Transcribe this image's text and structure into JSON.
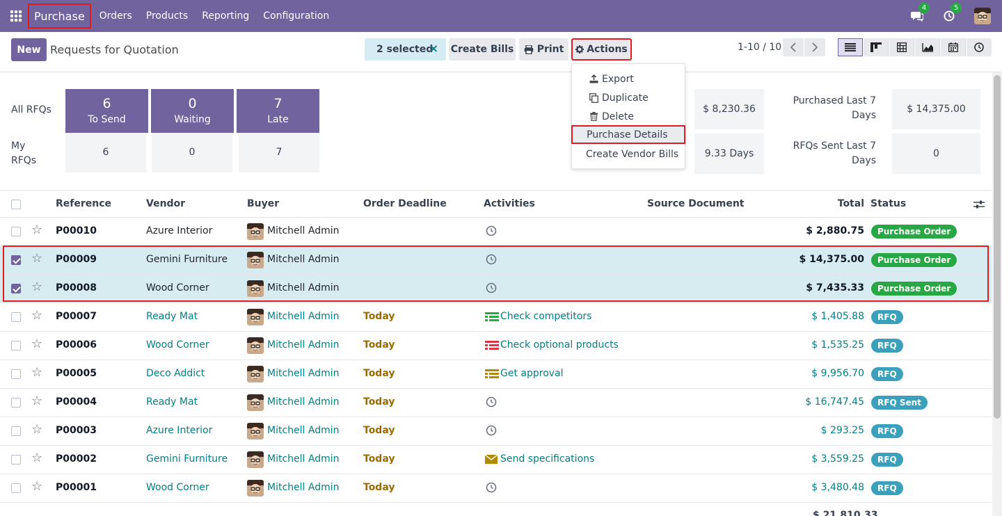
{
  "navbar": {
    "app_name": "Purchase",
    "menu": [
      "Orders",
      "Products",
      "Reporting",
      "Configuration"
    ],
    "messages_count": "4",
    "activities_count": "5"
  },
  "control_panel": {
    "new_label": "New",
    "title": "Requests for Quotation",
    "selected_label": "2 selected",
    "clear_icon": "×",
    "create_bills_label": "Create Bills",
    "print_label": "Print",
    "actions_label": "Actions",
    "pager_value": "1-10 / 10",
    "views": [
      "list-icon",
      "kanban-icon",
      "pivot-icon",
      "graph-icon",
      "calendar-icon",
      "activity-icon"
    ]
  },
  "dashboard": {
    "all_rfqs_label": "All RFQs",
    "my_rfqs_label": "My\nRFQs",
    "tiles": [
      {
        "num": "6",
        "label": "To Send",
        "mine": "6"
      },
      {
        "num": "0",
        "label": "Waiting",
        "mine": "0"
      },
      {
        "num": "7",
        "label": "Late",
        "mine": "7"
      }
    ],
    "stats": {
      "value_1": "$ 8,230.36",
      "value_2": "9.33 Days",
      "purchased_label": "Purchased Last 7 Days",
      "purchased_value": "$ 14,375.00",
      "rfqs_sent_label": "RFQs Sent Last 7 Days",
      "rfqs_sent_value": "0"
    }
  },
  "actions_menu": {
    "items": [
      {
        "label": "Export",
        "icon": "upload-icon"
      },
      {
        "label": "Duplicate",
        "icon": "copy-icon"
      },
      {
        "label": "Delete",
        "icon": "trash-icon"
      },
      {
        "label": "Purchase Details",
        "icon": ""
      },
      {
        "label": "Create Vendor Bills",
        "icon": ""
      }
    ]
  },
  "table": {
    "headers": {
      "reference": "Reference",
      "vendor": "Vendor",
      "buyer": "Buyer",
      "deadline": "Order Deadline",
      "activities": "Activities",
      "source": "Source Document",
      "total": "Total",
      "status": "Status"
    },
    "rows": [
      {
        "ref": "P00010",
        "vendor": "Azure Interior",
        "buyer": "Mitchell Admin",
        "deadline": "",
        "activity": "",
        "activity_icon": "clock-icon",
        "total": "$ 2,880.75",
        "status": "Purchase Order",
        "selected": false
      },
      {
        "ref": "P00009",
        "vendor": "Gemini Furniture",
        "buyer": "Mitchell Admin",
        "deadline": "",
        "activity": "",
        "activity_icon": "clock-icon",
        "total": "$ 14,375.00",
        "status": "Purchase Order",
        "selected": true
      },
      {
        "ref": "P00008",
        "vendor": "Wood Corner",
        "buyer": "Mitchell Admin",
        "deadline": "",
        "activity": "",
        "activity_icon": "clock-icon",
        "total": "$ 7,435.33",
        "status": "Purchase Order",
        "selected": true
      },
      {
        "ref": "P00007",
        "vendor": "Ready Mat",
        "buyer": "Mitchell Admin",
        "deadline": "Today",
        "activity": "Check competitors",
        "activity_icon": "todo-list-icon",
        "total": "$ 1,405.88",
        "status": "RFQ",
        "selected": false
      },
      {
        "ref": "P00006",
        "vendor": "Wood Corner",
        "buyer": "Mitchell Admin",
        "deadline": "Today",
        "activity": "Check optional products",
        "activity_icon": "todo-list-icon",
        "total": "$ 1,535.25",
        "status": "RFQ",
        "selected": false
      },
      {
        "ref": "P00005",
        "vendor": "Deco Addict",
        "buyer": "Mitchell Admin",
        "deadline": "Today",
        "activity": "Get approval",
        "activity_icon": "todo-list-icon",
        "total": "$ 9,956.70",
        "status": "RFQ",
        "selected": false
      },
      {
        "ref": "P00004",
        "vendor": "Ready Mat",
        "buyer": "Mitchell Admin",
        "deadline": "Today",
        "activity": "",
        "activity_icon": "clock-icon",
        "total": "$ 16,747.45",
        "status": "RFQ Sent",
        "selected": false
      },
      {
        "ref": "P00003",
        "vendor": "Azure Interior",
        "buyer": "Mitchell Admin",
        "deadline": "Today",
        "activity": "",
        "activity_icon": "clock-icon",
        "total": "$ 293.25",
        "status": "RFQ",
        "selected": false
      },
      {
        "ref": "P00002",
        "vendor": "Gemini Furniture",
        "buyer": "Mitchell Admin",
        "deadline": "Today",
        "activity": "Send specifications",
        "activity_icon": "envelope-icon",
        "total": "$ 3,559.25",
        "status": "RFQ",
        "selected": false
      },
      {
        "ref": "P00001",
        "vendor": "Wood Corner",
        "buyer": "Mitchell Admin",
        "deadline": "Today",
        "activity": "",
        "activity_icon": "clock-icon",
        "total": "$ 3,480.48",
        "status": "RFQ",
        "selected": false
      }
    ],
    "footer_total": "$ 21,810.33"
  },
  "colors": {
    "brand": "#71639e",
    "link": "#017e84",
    "highlight": "#e01b24",
    "po_badge": "#28a745",
    "rfq_badge": "#3aa0bb",
    "today": "#9a6b00",
    "activity_green": "#28a745",
    "activity_red": "#dc3545",
    "activity_amber": "#b08a00"
  }
}
